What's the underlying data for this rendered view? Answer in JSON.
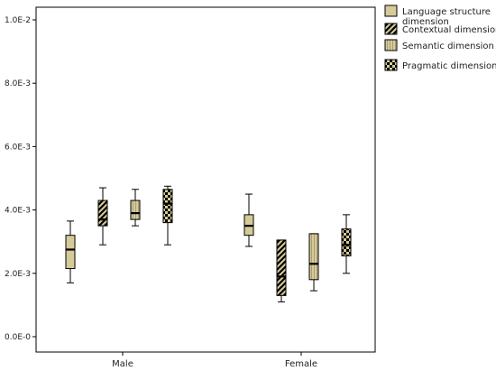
{
  "chart_data": {
    "type": "box",
    "title": "",
    "xlabel": "",
    "ylabel": "",
    "ylim": [
      0,
      0.0105
    ],
    "yticks": [
      {
        "value": 0.0,
        "label": "0.0E-0"
      },
      {
        "value": 0.002,
        "label": "2.0E-3"
      },
      {
        "value": 0.004,
        "label": "4.0E-3"
      },
      {
        "value": 0.006,
        "label": "6.0E-3"
      },
      {
        "value": 0.008,
        "label": "8.0E-3"
      },
      {
        "value": 0.01,
        "label": "1.0E-2"
      }
    ],
    "categories": [
      "Male",
      "Female"
    ],
    "grid": false,
    "legend_position": "top-right outside",
    "colors": {
      "fill": "#d6cb98",
      "stroke": "#000000",
      "pattern": "#000000"
    },
    "series": [
      {
        "name_lines": [
          "Language structure",
          "dimension"
        ],
        "pattern": "solid",
        "boxes": [
          {
            "min": 0.0017,
            "q1": 0.00215,
            "median": 0.00275,
            "q3": 0.0032,
            "max": 0.00365
          },
          {
            "min": 0.00285,
            "q1": 0.0032,
            "median": 0.0035,
            "q3": 0.00385,
            "max": 0.0045
          }
        ]
      },
      {
        "name_lines": [
          "Contextual dimension"
        ],
        "pattern": "diagonal",
        "boxes": [
          {
            "min": 0.0029,
            "q1": 0.0035,
            "median": 0.0037,
            "q3": 0.0043,
            "max": 0.0047
          },
          {
            "min": 0.0011,
            "q1": 0.0013,
            "median": 0.0019,
            "q3": 0.00305,
            "max": 0.00305
          }
        ]
      },
      {
        "name_lines": [
          "Semantic dimension"
        ],
        "pattern": "vertical",
        "boxes": [
          {
            "min": 0.0035,
            "q1": 0.0037,
            "median": 0.0039,
            "q3": 0.0043,
            "max": 0.00465
          },
          {
            "min": 0.00145,
            "q1": 0.0018,
            "median": 0.0023,
            "q3": 0.00325,
            "max": 0.00325
          }
        ]
      },
      {
        "name_lines": [
          "Pragmatic dimension"
        ],
        "pattern": "checker",
        "boxes": [
          {
            "min": 0.0029,
            "q1": 0.0036,
            "median": 0.0042,
            "q3": 0.00465,
            "max": 0.00475
          },
          {
            "min": 0.002,
            "q1": 0.00255,
            "median": 0.0029,
            "q3": 0.0034,
            "max": 0.00385
          }
        ]
      }
    ]
  }
}
